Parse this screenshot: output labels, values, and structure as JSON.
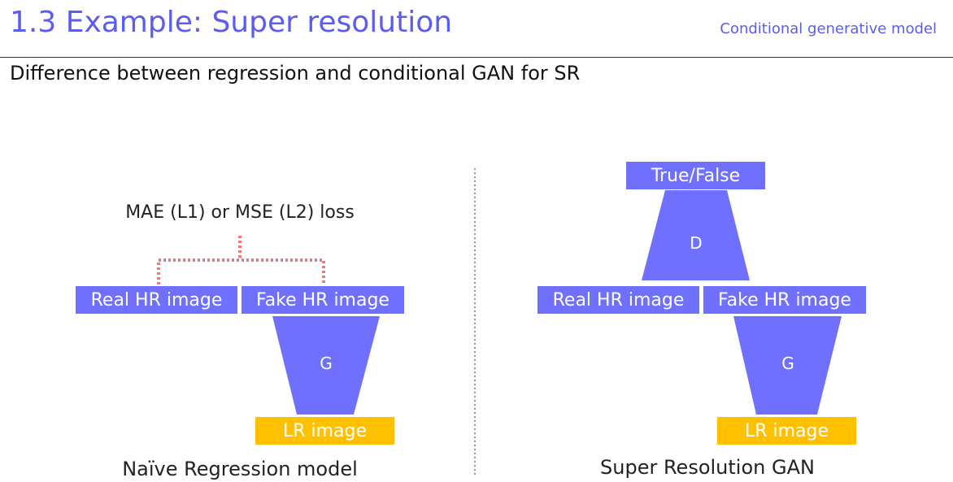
{
  "header": {
    "title": "1.3 Example: Super resolution",
    "section": "Conditional generative model",
    "subtitle": "Difference between regression and conditional GAN for SR"
  },
  "left_diagram": {
    "loss_label": "MAE (L1) or MSE (L2) loss",
    "real_label": "Real HR image",
    "fake_label": "Fake HR image",
    "generator_label": "G",
    "input_label": "LR image",
    "caption": "Naïve Regression model"
  },
  "right_diagram": {
    "output_label": "True/False",
    "discriminator_label": "D",
    "real_label": "Real HR image",
    "fake_label": "Fake HR image",
    "generator_label": "G",
    "input_label": "LR image",
    "caption": "Super Resolution GAN"
  },
  "colors": {
    "accent": "#5b5cf0",
    "box_purple": "#7070ff",
    "box_yellow": "#ffc000",
    "loss_dotted": "#f07878"
  }
}
